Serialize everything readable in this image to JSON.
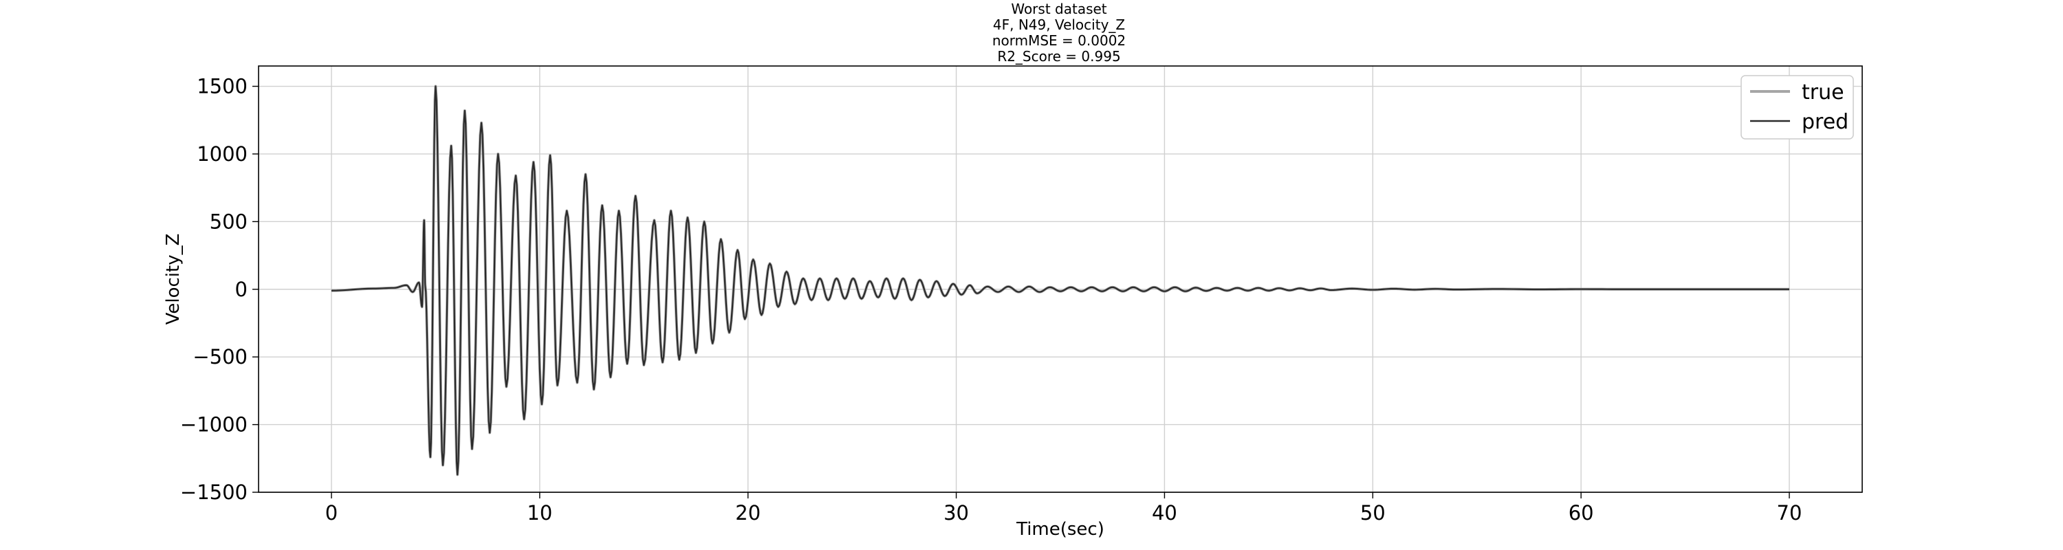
{
  "chart_data": {
    "type": "line",
    "title_lines": [
      "Worst dataset",
      "4F, N49, Velocity_Z",
      "normMSE = 0.0002",
      "R2_Score = 0.995"
    ],
    "xlabel": "Time(sec)",
    "ylabel": "Velocity_Z",
    "xlim": [
      -3.5,
      73.5
    ],
    "ylim": [
      -1500,
      1650
    ],
    "xticks": [
      0,
      10,
      20,
      30,
      40,
      50,
      60,
      70
    ],
    "yticks": [
      -1500,
      -1000,
      -500,
      0,
      500,
      1000,
      1500
    ],
    "ytick_labels": [
      "−1500",
      "−1000",
      "−500",
      "0",
      "500",
      "1000",
      "1500"
    ],
    "grid": true,
    "legend": {
      "position": "top-right",
      "entries": [
        "true",
        "pred"
      ]
    },
    "series": [
      {
        "name": "true",
        "color": "#a6a6a6",
        "peaks": [
          [
            0.0,
            -10
          ],
          [
            2.0,
            5
          ],
          [
            3.0,
            10
          ],
          [
            3.6,
            30
          ],
          [
            3.9,
            -20
          ],
          [
            4.2,
            50
          ],
          [
            4.35,
            -130
          ],
          [
            4.5,
            30
          ],
          [
            4.45,
            510
          ],
          [
            4.75,
            -1240
          ],
          [
            5.0,
            1500
          ],
          [
            5.35,
            -1300
          ],
          [
            5.75,
            1060
          ],
          [
            6.05,
            -1370
          ],
          [
            6.4,
            1320
          ],
          [
            6.75,
            -1180
          ],
          [
            7.2,
            1230
          ],
          [
            7.6,
            -1060
          ],
          [
            8.0,
            1000
          ],
          [
            8.4,
            -720
          ],
          [
            8.85,
            840
          ],
          [
            9.25,
            -960
          ],
          [
            9.7,
            940
          ],
          [
            10.1,
            -850
          ],
          [
            10.5,
            990
          ],
          [
            10.85,
            -710
          ],
          [
            11.3,
            580
          ],
          [
            11.8,
            -690
          ],
          [
            12.2,
            850
          ],
          [
            12.6,
            -740
          ],
          [
            13.0,
            620
          ],
          [
            13.4,
            -650
          ],
          [
            13.8,
            580
          ],
          [
            14.2,
            -550
          ],
          [
            14.6,
            690
          ],
          [
            15.0,
            -560
          ],
          [
            15.5,
            510
          ],
          [
            15.9,
            -540
          ],
          [
            16.3,
            580
          ],
          [
            16.7,
            -520
          ],
          [
            17.1,
            530
          ],
          [
            17.5,
            -470
          ],
          [
            17.9,
            500
          ],
          [
            18.3,
            -400
          ],
          [
            18.7,
            370
          ],
          [
            19.1,
            -320
          ],
          [
            19.5,
            290
          ],
          [
            19.85,
            -220
          ],
          [
            20.25,
            220
          ],
          [
            20.65,
            -190
          ],
          [
            21.05,
            190
          ],
          [
            21.45,
            -130
          ],
          [
            21.85,
            130
          ],
          [
            22.25,
            -110
          ],
          [
            22.65,
            80
          ],
          [
            23.05,
            -80
          ],
          [
            23.45,
            80
          ],
          [
            23.85,
            -80
          ],
          [
            24.25,
            80
          ],
          [
            24.65,
            -70
          ],
          [
            25.05,
            80
          ],
          [
            25.45,
            -70
          ],
          [
            25.85,
            60
          ],
          [
            26.25,
            -60
          ],
          [
            26.65,
            80
          ],
          [
            27.05,
            -70
          ],
          [
            27.45,
            80
          ],
          [
            27.85,
            -80
          ],
          [
            28.25,
            70
          ],
          [
            28.65,
            -60
          ],
          [
            29.05,
            60
          ],
          [
            29.45,
            -50
          ],
          [
            29.85,
            40
          ],
          [
            30.25,
            -40
          ],
          [
            30.65,
            30
          ],
          [
            31.0,
            -30
          ],
          [
            31.5,
            20
          ],
          [
            32.0,
            -20
          ],
          [
            32.5,
            20
          ],
          [
            33.0,
            -20
          ],
          [
            33.5,
            20
          ],
          [
            34.0,
            -20
          ],
          [
            34.5,
            15
          ],
          [
            35.0,
            -15
          ],
          [
            35.5,
            15
          ],
          [
            36.0,
            -15
          ],
          [
            36.5,
            15
          ],
          [
            37.0,
            -15
          ],
          [
            37.5,
            15
          ],
          [
            38.0,
            -15
          ],
          [
            38.5,
            15
          ],
          [
            39.0,
            -15
          ],
          [
            39.5,
            15
          ],
          [
            40.0,
            -15
          ],
          [
            40.5,
            15
          ],
          [
            41.0,
            -15
          ],
          [
            41.5,
            12
          ],
          [
            42.0,
            -12
          ],
          [
            42.5,
            10
          ],
          [
            43.0,
            -10
          ],
          [
            43.5,
            10
          ],
          [
            44.0,
            -10
          ],
          [
            44.5,
            10
          ],
          [
            45.0,
            -10
          ],
          [
            45.5,
            8
          ],
          [
            46.0,
            -8
          ],
          [
            46.5,
            7
          ],
          [
            47.0,
            -7
          ],
          [
            47.5,
            6
          ],
          [
            48.0,
            -6
          ],
          [
            49.0,
            5
          ],
          [
            50.0,
            -4
          ],
          [
            51.0,
            4
          ],
          [
            52.0,
            -3
          ],
          [
            53.0,
            3
          ],
          [
            54.0,
            -2
          ],
          [
            56.0,
            2
          ],
          [
            58.0,
            -1
          ],
          [
            60.0,
            1
          ],
          [
            62.0,
            0
          ],
          [
            65.0,
            0
          ],
          [
            70.0,
            0
          ]
        ]
      },
      {
        "name": "pred",
        "color": "#2b2b2b",
        "peaks": [
          [
            0.0,
            -10
          ],
          [
            2.0,
            5
          ],
          [
            3.0,
            10
          ],
          [
            3.6,
            30
          ],
          [
            3.9,
            -20
          ],
          [
            4.2,
            50
          ],
          [
            4.35,
            -130
          ],
          [
            4.5,
            30
          ],
          [
            4.45,
            510
          ],
          [
            4.75,
            -1240
          ],
          [
            5.0,
            1500
          ],
          [
            5.35,
            -1300
          ],
          [
            5.75,
            1060
          ],
          [
            6.05,
            -1370
          ],
          [
            6.4,
            1320
          ],
          [
            6.75,
            -1180
          ],
          [
            7.2,
            1230
          ],
          [
            7.6,
            -1060
          ],
          [
            8.0,
            1000
          ],
          [
            8.4,
            -720
          ],
          [
            8.85,
            840
          ],
          [
            9.25,
            -960
          ],
          [
            9.7,
            940
          ],
          [
            10.1,
            -850
          ],
          [
            10.5,
            990
          ],
          [
            10.85,
            -710
          ],
          [
            11.3,
            580
          ],
          [
            11.8,
            -690
          ],
          [
            12.2,
            850
          ],
          [
            12.6,
            -740
          ],
          [
            13.0,
            620
          ],
          [
            13.4,
            -650
          ],
          [
            13.8,
            580
          ],
          [
            14.2,
            -550
          ],
          [
            14.6,
            690
          ],
          [
            15.0,
            -560
          ],
          [
            15.5,
            510
          ],
          [
            15.9,
            -540
          ],
          [
            16.3,
            580
          ],
          [
            16.7,
            -520
          ],
          [
            17.1,
            530
          ],
          [
            17.5,
            -470
          ],
          [
            17.9,
            500
          ],
          [
            18.3,
            -400
          ],
          [
            18.7,
            370
          ],
          [
            19.1,
            -320
          ],
          [
            19.5,
            290
          ],
          [
            19.85,
            -220
          ],
          [
            20.25,
            220
          ],
          [
            20.65,
            -190
          ],
          [
            21.05,
            190
          ],
          [
            21.45,
            -130
          ],
          [
            21.85,
            130
          ],
          [
            22.25,
            -110
          ],
          [
            22.65,
            80
          ],
          [
            23.05,
            -80
          ],
          [
            23.45,
            80
          ],
          [
            23.85,
            -80
          ],
          [
            24.25,
            80
          ],
          [
            24.65,
            -70
          ],
          [
            25.05,
            80
          ],
          [
            25.45,
            -70
          ],
          [
            25.85,
            60
          ],
          [
            26.25,
            -60
          ],
          [
            26.65,
            80
          ],
          [
            27.05,
            -70
          ],
          [
            27.45,
            80
          ],
          [
            27.85,
            -80
          ],
          [
            28.25,
            70
          ],
          [
            28.65,
            -60
          ],
          [
            29.05,
            60
          ],
          [
            29.45,
            -50
          ],
          [
            29.85,
            40
          ],
          [
            30.25,
            -40
          ],
          [
            30.65,
            30
          ],
          [
            31.0,
            -30
          ],
          [
            31.5,
            20
          ],
          [
            32.0,
            -20
          ],
          [
            32.5,
            20
          ],
          [
            33.0,
            -20
          ],
          [
            33.5,
            20
          ],
          [
            34.0,
            -20
          ],
          [
            34.5,
            15
          ],
          [
            35.0,
            -15
          ],
          [
            35.5,
            15
          ],
          [
            36.0,
            -15
          ],
          [
            36.5,
            15
          ],
          [
            37.0,
            -15
          ],
          [
            37.5,
            15
          ],
          [
            38.0,
            -15
          ],
          [
            38.5,
            15
          ],
          [
            39.0,
            -15
          ],
          [
            39.5,
            15
          ],
          [
            40.0,
            -15
          ],
          [
            40.5,
            15
          ],
          [
            41.0,
            -15
          ],
          [
            41.5,
            12
          ],
          [
            42.0,
            -12
          ],
          [
            42.5,
            10
          ],
          [
            43.0,
            -10
          ],
          [
            43.5,
            10
          ],
          [
            44.0,
            -10
          ],
          [
            44.5,
            10
          ],
          [
            45.0,
            -10
          ],
          [
            45.5,
            8
          ],
          [
            46.0,
            -8
          ],
          [
            46.5,
            7
          ],
          [
            47.0,
            -7
          ],
          [
            47.5,
            6
          ],
          [
            48.0,
            -6
          ],
          [
            49.0,
            5
          ],
          [
            50.0,
            -4
          ],
          [
            51.0,
            4
          ],
          [
            52.0,
            -3
          ],
          [
            53.0,
            3
          ],
          [
            54.0,
            -2
          ],
          [
            56.0,
            2
          ],
          [
            58.0,
            -1
          ],
          [
            60.0,
            1
          ],
          [
            62.0,
            0
          ],
          [
            65.0,
            0
          ],
          [
            70.0,
            0
          ]
        ]
      }
    ]
  },
  "colors": {
    "grid": "#d0d0d0",
    "axes_frame": "#000000",
    "background": "#ffffff"
  }
}
